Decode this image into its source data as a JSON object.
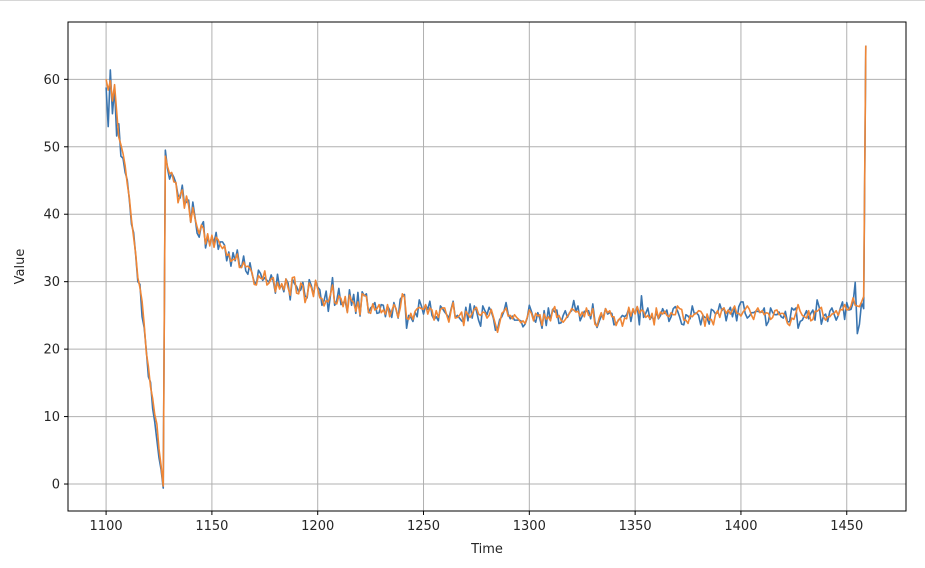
{
  "chart_data": {
    "type": "line",
    "title": "",
    "xlabel": "Time",
    "ylabel": "Value",
    "xlim": [
      1082,
      1478
    ],
    "ylim": [
      -4,
      68.5
    ],
    "xticks": [
      1100,
      1150,
      1200,
      1250,
      1300,
      1350,
      1400,
      1450
    ],
    "yticks": [
      0,
      10,
      20,
      30,
      40,
      50,
      60
    ],
    "grid": true,
    "legend": "none",
    "series": [
      {
        "color": "#3a75b0",
        "x_start": 1100,
        "x_step": 1,
        "values": [
          58.8,
          53.0,
          61.4,
          54.9,
          58.7,
          51.6,
          53.4,
          48.6,
          48.3,
          46.2,
          45.1,
          42.1,
          38.5,
          37.3,
          33.9,
          30.0,
          29.6,
          24.8,
          23.2,
          19.8,
          15.9,
          15.1,
          11.2,
          9.2,
          6.5,
          3.9,
          2.1,
          -0.6,
          49.5,
          46.8,
          45.2,
          46.1,
          45.5,
          44.6,
          42.8,
          42.4,
          44.3,
          41.5,
          41.8,
          42.1,
          38.8,
          41.8,
          39.6,
          37.2,
          36.6,
          38.3,
          38.9,
          35.0,
          36.6,
          35.6,
          36.7,
          35.8,
          37.3,
          34.8,
          35.9,
          35.9,
          35.4,
          33.1,
          34.4,
          32.3,
          34.3,
          33.1,
          34.7,
          32.5,
          32.1,
          33.8,
          31.6,
          31.1,
          32.8,
          31.1,
          30.0,
          29.6,
          31.7,
          31.2,
          30.2,
          30.6,
          30.2,
          29.9,
          31.0,
          30.1,
          28.3,
          31.1,
          29.1,
          29.5,
          28.5,
          30.4,
          29.8,
          27.3,
          30.4,
          29.7,
          29.3,
          28.5,
          28.8,
          29.9,
          27.9,
          27.6,
          30.3,
          29.4,
          28.0,
          30.1,
          29.2,
          28.8,
          26.5,
          27.2,
          28.6,
          25.6,
          27.9,
          30.6,
          26.5,
          27.2,
          29.0,
          26.6,
          26.9,
          27.1,
          25.5,
          28.8,
          26.5,
          28.1,
          25.3,
          28.4,
          24.9,
          28.5,
          27.9,
          28.2,
          25.4,
          26.1,
          26.4,
          26.9,
          25.3,
          25.4,
          26.6,
          26.5,
          24.8,
          26.4,
          25.8,
          24.7,
          26.9,
          25.9,
          24.6,
          27.4,
          27.8,
          28.1,
          23.1,
          25.0,
          24.7,
          24.1,
          25.5,
          24.8,
          27.3,
          26.4,
          25.2,
          26.5,
          25.9,
          27.1,
          25.0,
          24.4,
          24.8,
          24.2,
          26.4,
          26.0,
          25.5,
          25.1,
          24.6,
          25.9,
          27.1,
          24.7,
          25.0,
          24.6,
          24.2,
          24.0,
          26.2,
          24.2,
          26.7,
          24.6,
          26.4,
          25.7,
          24.3,
          23.4,
          26.4,
          25.7,
          25.1,
          26.2,
          25.6,
          24.6,
          22.8,
          23.0,
          24.4,
          24.8,
          25.6,
          26.9,
          25.2,
          24.5,
          24.9,
          24.3,
          24.3,
          24.3,
          24.2,
          23.3,
          23.7,
          24.6,
          26.5,
          25.6,
          24.5,
          24.0,
          25.4,
          24.5,
          23.1,
          25.7,
          23.5,
          26.1,
          24.3,
          25.9,
          25.5,
          25.8,
          23.8,
          23.9,
          25.0,
          25.7,
          24.7,
          25.4,
          25.7,
          27.2,
          25.6,
          26.4,
          24.2,
          24.9,
          25.6,
          25.6,
          25.7,
          24.5,
          26.7,
          24.1,
          23.2,
          24.1,
          24.9,
          24.8,
          26.0,
          25.2,
          25.4,
          25.3,
          23.6,
          23.8,
          24.2,
          24.6,
          25.0,
          24.8,
          25.1,
          26.0,
          24.1,
          25.8,
          25.3,
          26.3,
          23.6,
          27.9,
          24.7,
          25.3,
          26.1,
          24.4,
          24.9,
          24.1,
          25.6,
          24.5,
          25.0,
          26.0,
          25.3,
          25.8,
          24.1,
          24.8,
          26.0,
          26.3,
          25.7,
          24.8,
          23.7,
          23.6,
          25.1,
          24.9,
          24.5,
          26.4,
          25.2,
          25.4,
          25.0,
          23.6,
          25.0,
          24.7,
          24.6,
          23.7,
          25.9,
          25.7,
          25.2,
          25.4,
          26.7,
          25.7,
          26.1,
          24.2,
          25.6,
          26.2,
          24.8,
          26.1,
          24.2,
          26.3,
          27.0,
          27.0,
          25.3,
          24.6,
          24.9,
          25.4,
          25.4,
          25.6,
          25.6,
          25.5,
          25.5,
          26.1,
          23.5,
          24.1,
          26.1,
          25.4,
          25.1,
          25.1,
          25.5,
          24.8,
          24.6,
          25.6,
          24.0,
          24.1,
          26.1,
          25.8,
          26.1,
          23.1,
          24.1,
          24.3,
          25.0,
          25.7,
          24.5,
          25.3,
          25.8,
          24.3,
          27.3,
          26.2,
          23.7,
          24.9,
          25.2,
          24.1,
          25.6,
          26.1,
          25.2,
          24.3,
          25.0,
          26.1,
          27.0,
          24.4,
          26.9,
          25.8,
          25.9,
          26.9,
          29.9,
          22.3,
          23.7,
          26.9,
          26.0,
          65.0
        ]
      },
      {
        "color": "#ef8636",
        "x_start": 1100,
        "x_step": 1,
        "values": [
          60.0,
          58.4,
          59.8,
          56.8,
          59.2,
          55.2,
          51.4,
          50.3,
          49.0,
          47.2,
          44.5,
          42.4,
          39.2,
          36.6,
          34.1,
          30.6,
          29.1,
          27.1,
          23.7,
          19.5,
          17.4,
          14.4,
          12.7,
          10.3,
          8.9,
          5.2,
          2.7,
          -0.3,
          48.6,
          47.1,
          46.0,
          46.2,
          44.8,
          44.7,
          41.7,
          42.9,
          43.6,
          40.9,
          42.7,
          41.3,
          38.8,
          41.0,
          39.4,
          38.1,
          37.1,
          38.4,
          37.9,
          35.6,
          37.1,
          35.3,
          36.9,
          35.1,
          36.6,
          36.2,
          35.4,
          34.9,
          35.3,
          33.9,
          34.1,
          33.0,
          33.3,
          33.3,
          34.1,
          32.1,
          32.1,
          32.9,
          32.2,
          32.3,
          32.0,
          31.3,
          29.6,
          29.5,
          30.9,
          30.5,
          30.4,
          31.6,
          29.5,
          29.8,
          30.4,
          30.6,
          28.5,
          29.9,
          28.9,
          29.7,
          28.8,
          30.4,
          29.1,
          28.0,
          30.6,
          30.7,
          28.3,
          28.2,
          29.8,
          29.4,
          26.9,
          27.9,
          29.8,
          29.1,
          27.8,
          30.2,
          28.9,
          27.6,
          27.5,
          26.4,
          27.2,
          27.0,
          28.1,
          29.5,
          26.9,
          26.7,
          27.9,
          27.5,
          26.3,
          27.8,
          25.4,
          28.0,
          27.2,
          26.9,
          25.6,
          27.0,
          25.1,
          28.2,
          28.0,
          27.8,
          25.5,
          25.3,
          26.7,
          25.8,
          26.0,
          26.6,
          25.4,
          25.8,
          25.2,
          26.6,
          24.8,
          25.7,
          26.6,
          26.0,
          24.7,
          26.1,
          28.2,
          27.7,
          24.6,
          24.4,
          25.3,
          24.4,
          25.6,
          26.0,
          26.2,
          26.0,
          25.9,
          26.6,
          25.2,
          26.1,
          25.8,
          24.3,
          25.7,
          24.7,
          25.9,
          26.1,
          26.1,
          25.0,
          24.0,
          25.7,
          26.9,
          24.6,
          24.7,
          25.0,
          25.5,
          23.5,
          25.6,
          25.2,
          24.7,
          25.3,
          25.9,
          26.2,
          25.2,
          25.0,
          25.5,
          25.4,
          24.6,
          25.0,
          25.9,
          24.8,
          23.7,
          22.5,
          23.9,
          25.3,
          25.6,
          26.1,
          24.9,
          25.0,
          24.5,
          25.1,
          24.7,
          24.4,
          23.9,
          24.2,
          23.8,
          24.7,
          25.8,
          25.3,
          24.2,
          25.3,
          24.9,
          25.1,
          23.5,
          25.2,
          24.4,
          24.8,
          24.2,
          25.7,
          26.3,
          24.7,
          25.0,
          24.3,
          24.0,
          24.4,
          24.9,
          25.3,
          26.0,
          25.8,
          25.5,
          25.6,
          24.9,
          25.5,
          24.8,
          26.1,
          25.0,
          25.0,
          26.0,
          23.7,
          23.4,
          24.6,
          25.4,
          24.4,
          26.0,
          25.4,
          25.7,
          24.8,
          24.8,
          23.5,
          24.3,
          24.6,
          23.4,
          24.6,
          24.5,
          26.2,
          24.9,
          26.0,
          25.2,
          26.3,
          25.3,
          25.8,
          25.6,
          24.7,
          25.0,
          24.5,
          25.3,
          23.6,
          26.1,
          24.6,
          25.5,
          25.2,
          25.6,
          25.0,
          24.8,
          25.4,
          25.1,
          25.1,
          26.4,
          26.0,
          25.9,
          24.3,
          24.3,
          23.8,
          25.0,
          24.8,
          25.2,
          25.3,
          25.7,
          25.6,
          25.1,
          23.4,
          25.2,
          24.3,
          24.4,
          23.6,
          25.2,
          25.7,
          24.7,
          25.9,
          26.1,
          25.3,
          25.8,
          25.2,
          25.8,
          26.4,
          25.3,
          25.3,
          24.9,
          25.5,
          25.9,
          26.4,
          25.9,
          25.0,
          24.4,
          25.6,
          26.1,
          25.4,
          25.7,
          25.1,
          25.4,
          25.3,
          24.4,
          24.7,
          25.7,
          25.8,
          25.1,
          25.3,
          25.3,
          24.8,
          23.8,
          23.5,
          24.6,
          24.4,
          25.4,
          26.6,
          25.6,
          25.0,
          24.8,
          24.6,
          25.7,
          24.2,
          24.4,
          25.6,
          25.6,
          25.9,
          26.2,
          24.8,
          24.3,
          24.8,
          24.8,
          25.2,
          25.3,
          25.7,
          25.0,
          25.9,
          25.8,
          26.6,
          25.8,
          25.9,
          26.4,
          27.6,
          26.5,
          26.4,
          26.3,
          27.0,
          27.8,
          65.0
        ]
      }
    ]
  }
}
